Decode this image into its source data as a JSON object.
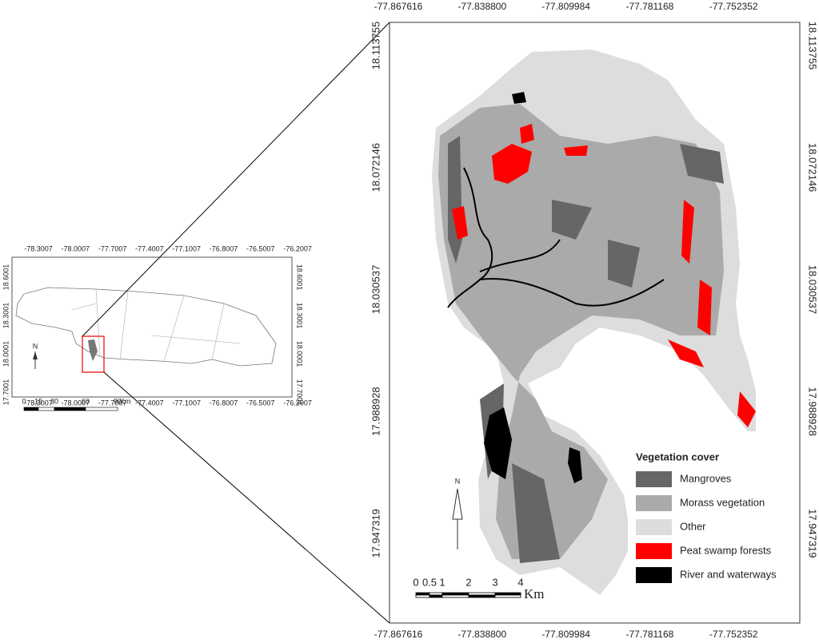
{
  "inset": {
    "top_ticks": [
      "-78.3007",
      "-78.0007",
      "-77.7007",
      "-77.4007",
      "-77.1007",
      "-76.8007",
      "-76.5007",
      "-76.2007"
    ],
    "bottom_ticks": [
      "-78.3007",
      "-78.0007",
      "-77.7007",
      "-77.4007",
      "-77.1007",
      "-76.8007",
      "-76.5007",
      "-76.2007"
    ],
    "left_ticks": [
      "18.6001",
      "18.3001",
      "18.0001",
      "17.7001"
    ],
    "right_ticks": [
      "18.6001",
      "18.3001",
      "18.0001",
      "17.7001"
    ],
    "scale_labels": [
      "0",
      "15",
      "30",
      "60",
      "90"
    ],
    "scale_unit": "Km",
    "north": "N"
  },
  "main": {
    "top_ticks": [
      "-77.867616",
      "-77.838800",
      "-77.809984",
      "-77.781168",
      "-77.752352"
    ],
    "bottom_ticks": [
      "-77.867616",
      "-77.838800",
      "-77.809984",
      "-77.781168",
      "-77.752352"
    ],
    "left_ticks": [
      "18.113755",
      "18.072146",
      "18.030537",
      "17.988928",
      "17.947319"
    ],
    "right_ticks": [
      "18.113755",
      "18.072146",
      "18.030537",
      "17.988928",
      "17.947319"
    ],
    "scale_labels": [
      "0",
      "0.5",
      "1",
      "2",
      "3",
      "4"
    ],
    "scale_unit": "Km",
    "north": "N"
  },
  "legend": {
    "title": "Vegetation cover",
    "items": [
      {
        "label": "Mangroves",
        "color": "#666666"
      },
      {
        "label": "Morass vegetation",
        "color": "#aaaaaa"
      },
      {
        "label": "Other",
        "color": "#dddddd"
      },
      {
        "label": "Peat swamp forests",
        "color": "#ff0000"
      },
      {
        "label": "River and waterways",
        "color": "#000000"
      }
    ]
  }
}
